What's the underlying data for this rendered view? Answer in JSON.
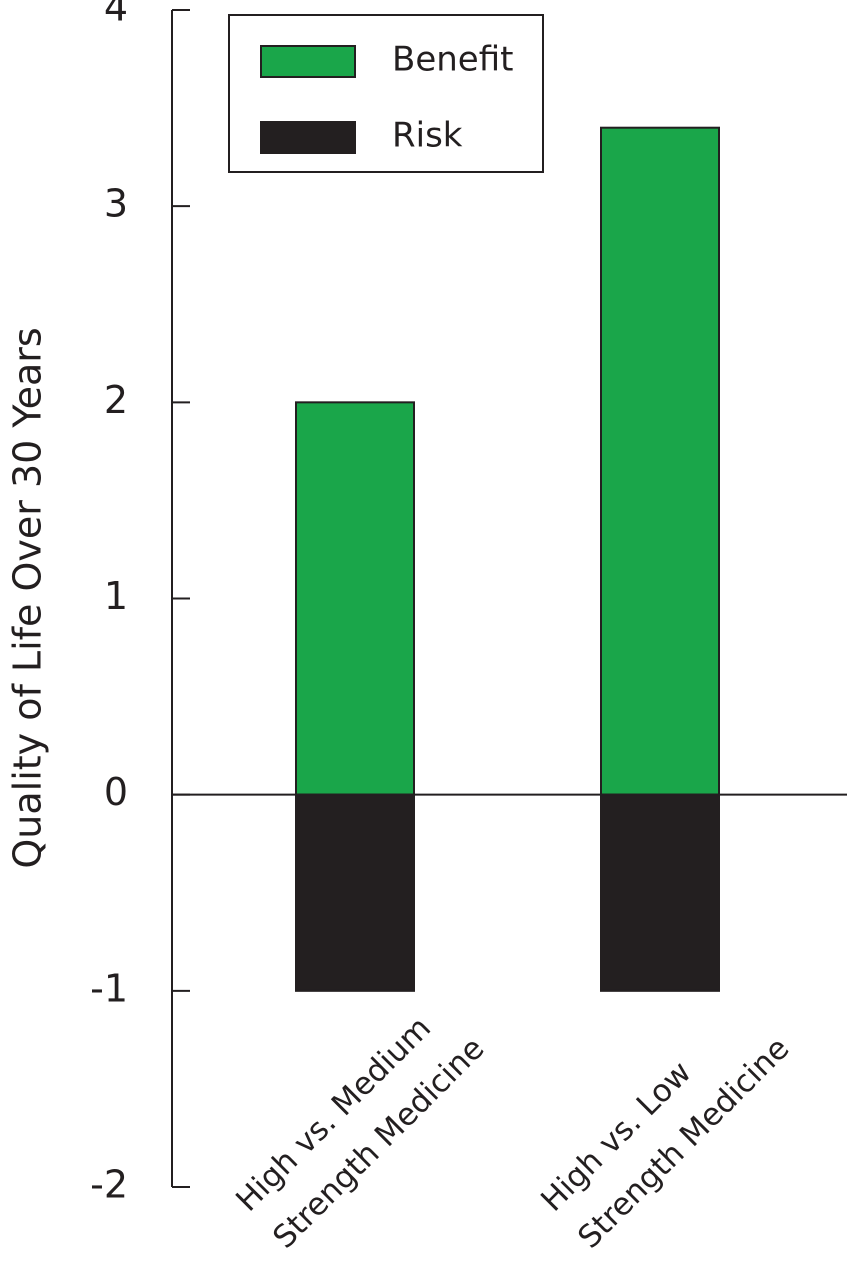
{
  "chart_data": {
    "type": "bar",
    "y_label": "Quality of Life Over 30 Years",
    "categories": [
      [
        "High vs. Medium",
        "Strength Medicine"
      ],
      [
        "High vs. Low",
        "Strength Medicine"
      ]
    ],
    "series": [
      {
        "name": "Benefit",
        "color": "#1aa64a",
        "values": [
          2,
          3.4
        ]
      },
      {
        "name": "Risk",
        "color": "#231f20",
        "values": [
          -1,
          -1
        ]
      }
    ],
    "ylim": [
      -2,
      4
    ],
    "yticks": [
      -2,
      -1,
      0,
      1,
      2,
      3,
      4
    ],
    "legend": "top-left"
  }
}
